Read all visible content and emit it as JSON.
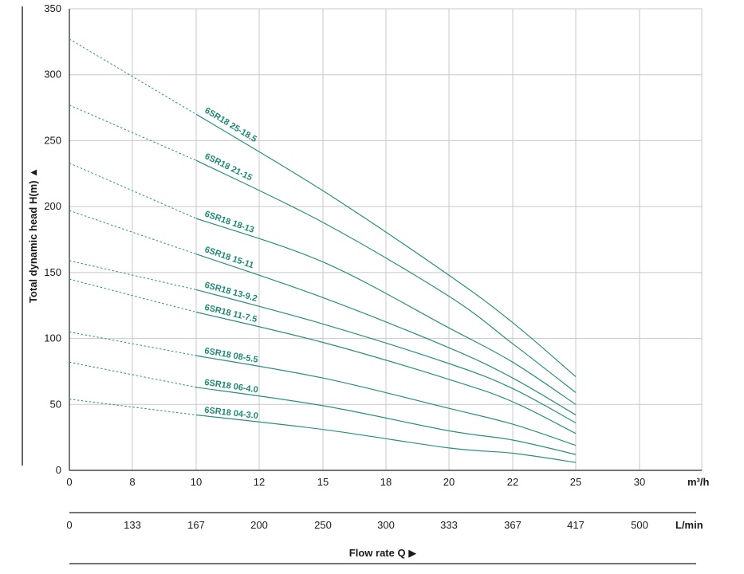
{
  "chart_data": {
    "type": "line",
    "ylabel": "Total dynamic head H(m) ▲",
    "xlabel": "Flow rate Q ▶",
    "x_unit_primary": "m³/h",
    "x_unit_secondary": "L/min",
    "ylim": [
      0,
      350
    ],
    "yticks": [
      "0",
      "50",
      "100",
      "150",
      "200",
      "250",
      "300",
      "350"
    ],
    "x_ticks_primary": [
      "0",
      "8",
      "10",
      "12",
      "15",
      "18",
      "20",
      "22",
      "25",
      "30"
    ],
    "x_ticks_secondary": [
      "0",
      "133",
      "167",
      "200",
      "250",
      "300",
      "333",
      "367",
      "417",
      "500"
    ],
    "grid": true,
    "colors": {
      "curve": "#2a8f7e",
      "label": "#1e8a74",
      "grid": "#c8c8c8",
      "axis": "#222222"
    },
    "recommended_range_m3h": [
      10,
      25
    ],
    "series": [
      {
        "name": "6SR18 25-18.5",
        "x": [
          0,
          10,
          15,
          20,
          22,
          25
        ],
        "y": [
          327,
          270,
          212,
          148,
          112,
          71
        ]
      },
      {
        "name": "6SR18 21-15",
        "x": [
          0,
          10,
          15,
          20,
          22,
          25
        ],
        "y": [
          277,
          235,
          188,
          132,
          96,
          59
        ]
      },
      {
        "name": "6SR18 18-13",
        "x": [
          0,
          10,
          15,
          20,
          22,
          25
        ],
        "y": [
          233,
          191,
          158,
          108,
          82,
          50
        ]
      },
      {
        "name": "6SR18 15-11",
        "x": [
          0,
          10,
          15,
          20,
          22,
          25
        ],
        "y": [
          197,
          164,
          131,
          93,
          70,
          42
        ]
      },
      {
        "name": "6SR18 13-9.2",
        "x": [
          0,
          10,
          15,
          20,
          22,
          25
        ],
        "y": [
          159,
          137,
          111,
          81,
          62,
          36
        ]
      },
      {
        "name": "6SR18 11-7.5",
        "x": [
          0,
          10,
          15,
          20,
          22,
          25
        ],
        "y": [
          145,
          120,
          97,
          69,
          52,
          28
        ]
      },
      {
        "name": "6SR18 08-5.5",
        "x": [
          0,
          10,
          15,
          20,
          22,
          25
        ],
        "y": [
          105,
          87,
          70,
          47,
          35,
          19
        ]
      },
      {
        "name": "6SR18 06-4.0",
        "x": [
          0,
          10,
          15,
          20,
          22,
          25
        ],
        "y": [
          82,
          63,
          49,
          30,
          23,
          12
        ]
      },
      {
        "name": "6SR18 04-3.0",
        "x": [
          0,
          10,
          15,
          20,
          22,
          25
        ],
        "y": [
          54,
          42,
          31,
          17,
          13,
          6
        ]
      }
    ]
  }
}
